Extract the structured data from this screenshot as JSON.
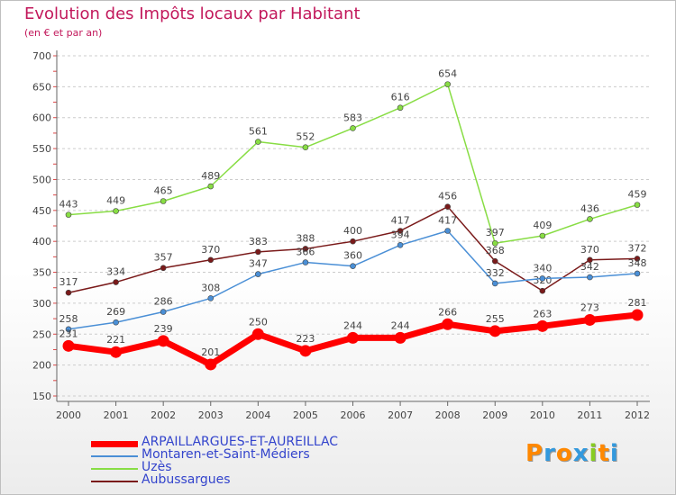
{
  "chart_data": {
    "type": "line",
    "title": "Evolution des Impôts locaux par Habitant",
    "subtitle": "(en € et par an)",
    "x": [
      "2000",
      "2001",
      "2002",
      "2003",
      "2004",
      "2005",
      "2006",
      "2007",
      "2008",
      "2009",
      "2010",
      "2011",
      "2012"
    ],
    "ylim": [
      150,
      700
    ],
    "yticks": [
      150,
      200,
      250,
      300,
      350,
      400,
      450,
      500,
      550,
      600,
      650,
      700
    ],
    "series": [
      {
        "name": "ARPAILLARGUES-ET-AUREILLAC",
        "color": "#ff0000",
        "values": [
          231,
          221,
          239,
          201,
          250,
          223,
          244,
          244,
          266,
          255,
          263,
          273,
          281
        ]
      },
      {
        "name": "Montaren-et-Saint-Médiers",
        "color": "#4a8fd6",
        "values": [
          258,
          269,
          286,
          308,
          347,
          366,
          360,
          394,
          417,
          332,
          340,
          342,
          348
        ]
      },
      {
        "name": "Uzès",
        "color": "#88dd44",
        "values": [
          443,
          449,
          465,
          489,
          561,
          552,
          583,
          616,
          654,
          397,
          409,
          436,
          459
        ]
      },
      {
        "name": "Aubussargues",
        "color": "#7a1a1a",
        "values": [
          317,
          334,
          357,
          370,
          383,
          388,
          400,
          417,
          456,
          368,
          320,
          370,
          372
        ]
      }
    ]
  },
  "legend": {
    "items": [
      {
        "label": "ARPAILLARGUES-ET-AUREILLAC",
        "color": "#ff0000"
      },
      {
        "label": "Montaren-et-Saint-Médiers",
        "color": "#4a8fd6"
      },
      {
        "label": "Uzès",
        "color": "#88dd44"
      },
      {
        "label": "Aubussargues",
        "color": "#7a1a1a"
      }
    ]
  },
  "logo": {
    "letters": [
      "P",
      "r",
      "o",
      "x",
      "i",
      "t",
      "i"
    ],
    "colors": [
      "#ff8800",
      "#3399dd",
      "#ff8800",
      "#3399dd",
      "#88cc22",
      "#ff8800",
      "#3399dd"
    ]
  }
}
